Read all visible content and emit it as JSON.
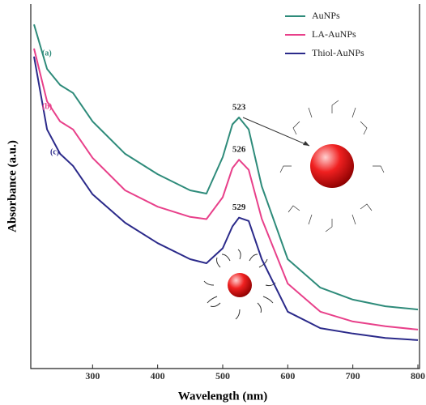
{
  "chart_data": {
    "type": "line",
    "x_label": "Wavelength (nm)",
    "y_label": "Absorbance (a.u.)",
    "x": [
      210,
      230,
      250,
      270,
      300,
      350,
      400,
      450,
      475,
      500,
      515,
      525,
      540,
      560,
      600,
      650,
      700,
      750,
      800
    ],
    "series": [
      {
        "name": "AuNPs",
        "color": "#2e8b7a",
        "values": [
          0.944,
          0.822,
          0.778,
          0.756,
          0.678,
          0.589,
          0.533,
          0.489,
          0.48,
          0.58,
          0.67,
          0.689,
          0.656,
          0.5,
          0.3,
          0.222,
          0.189,
          0.171,
          0.162
        ]
      },
      {
        "name": "LA-AuNPs",
        "color": "#e8408a",
        "values": [
          0.878,
          0.733,
          0.678,
          0.656,
          0.578,
          0.489,
          0.444,
          0.416,
          0.41,
          0.47,
          0.55,
          0.573,
          0.545,
          0.411,
          0.233,
          0.156,
          0.129,
          0.116,
          0.107
        ]
      },
      {
        "name": "Thiol-AuNPs",
        "color": "#2b2a8a",
        "values": [
          0.856,
          0.656,
          0.589,
          0.556,
          0.478,
          0.4,
          0.344,
          0.3,
          0.289,
          0.33,
          0.39,
          0.414,
          0.405,
          0.3,
          0.156,
          0.111,
          0.096,
          0.084,
          0.078
        ]
      }
    ],
    "xlim": [
      205,
      800
    ],
    "xticks": [
      300,
      400,
      500,
      600,
      700,
      800
    ],
    "ylim": [
      0,
      1
    ],
    "legend": "top-right",
    "curve_labels": [
      "(a)",
      "(b)",
      "(c)"
    ],
    "peak_labels": [
      "523",
      "526",
      "529"
    ]
  }
}
